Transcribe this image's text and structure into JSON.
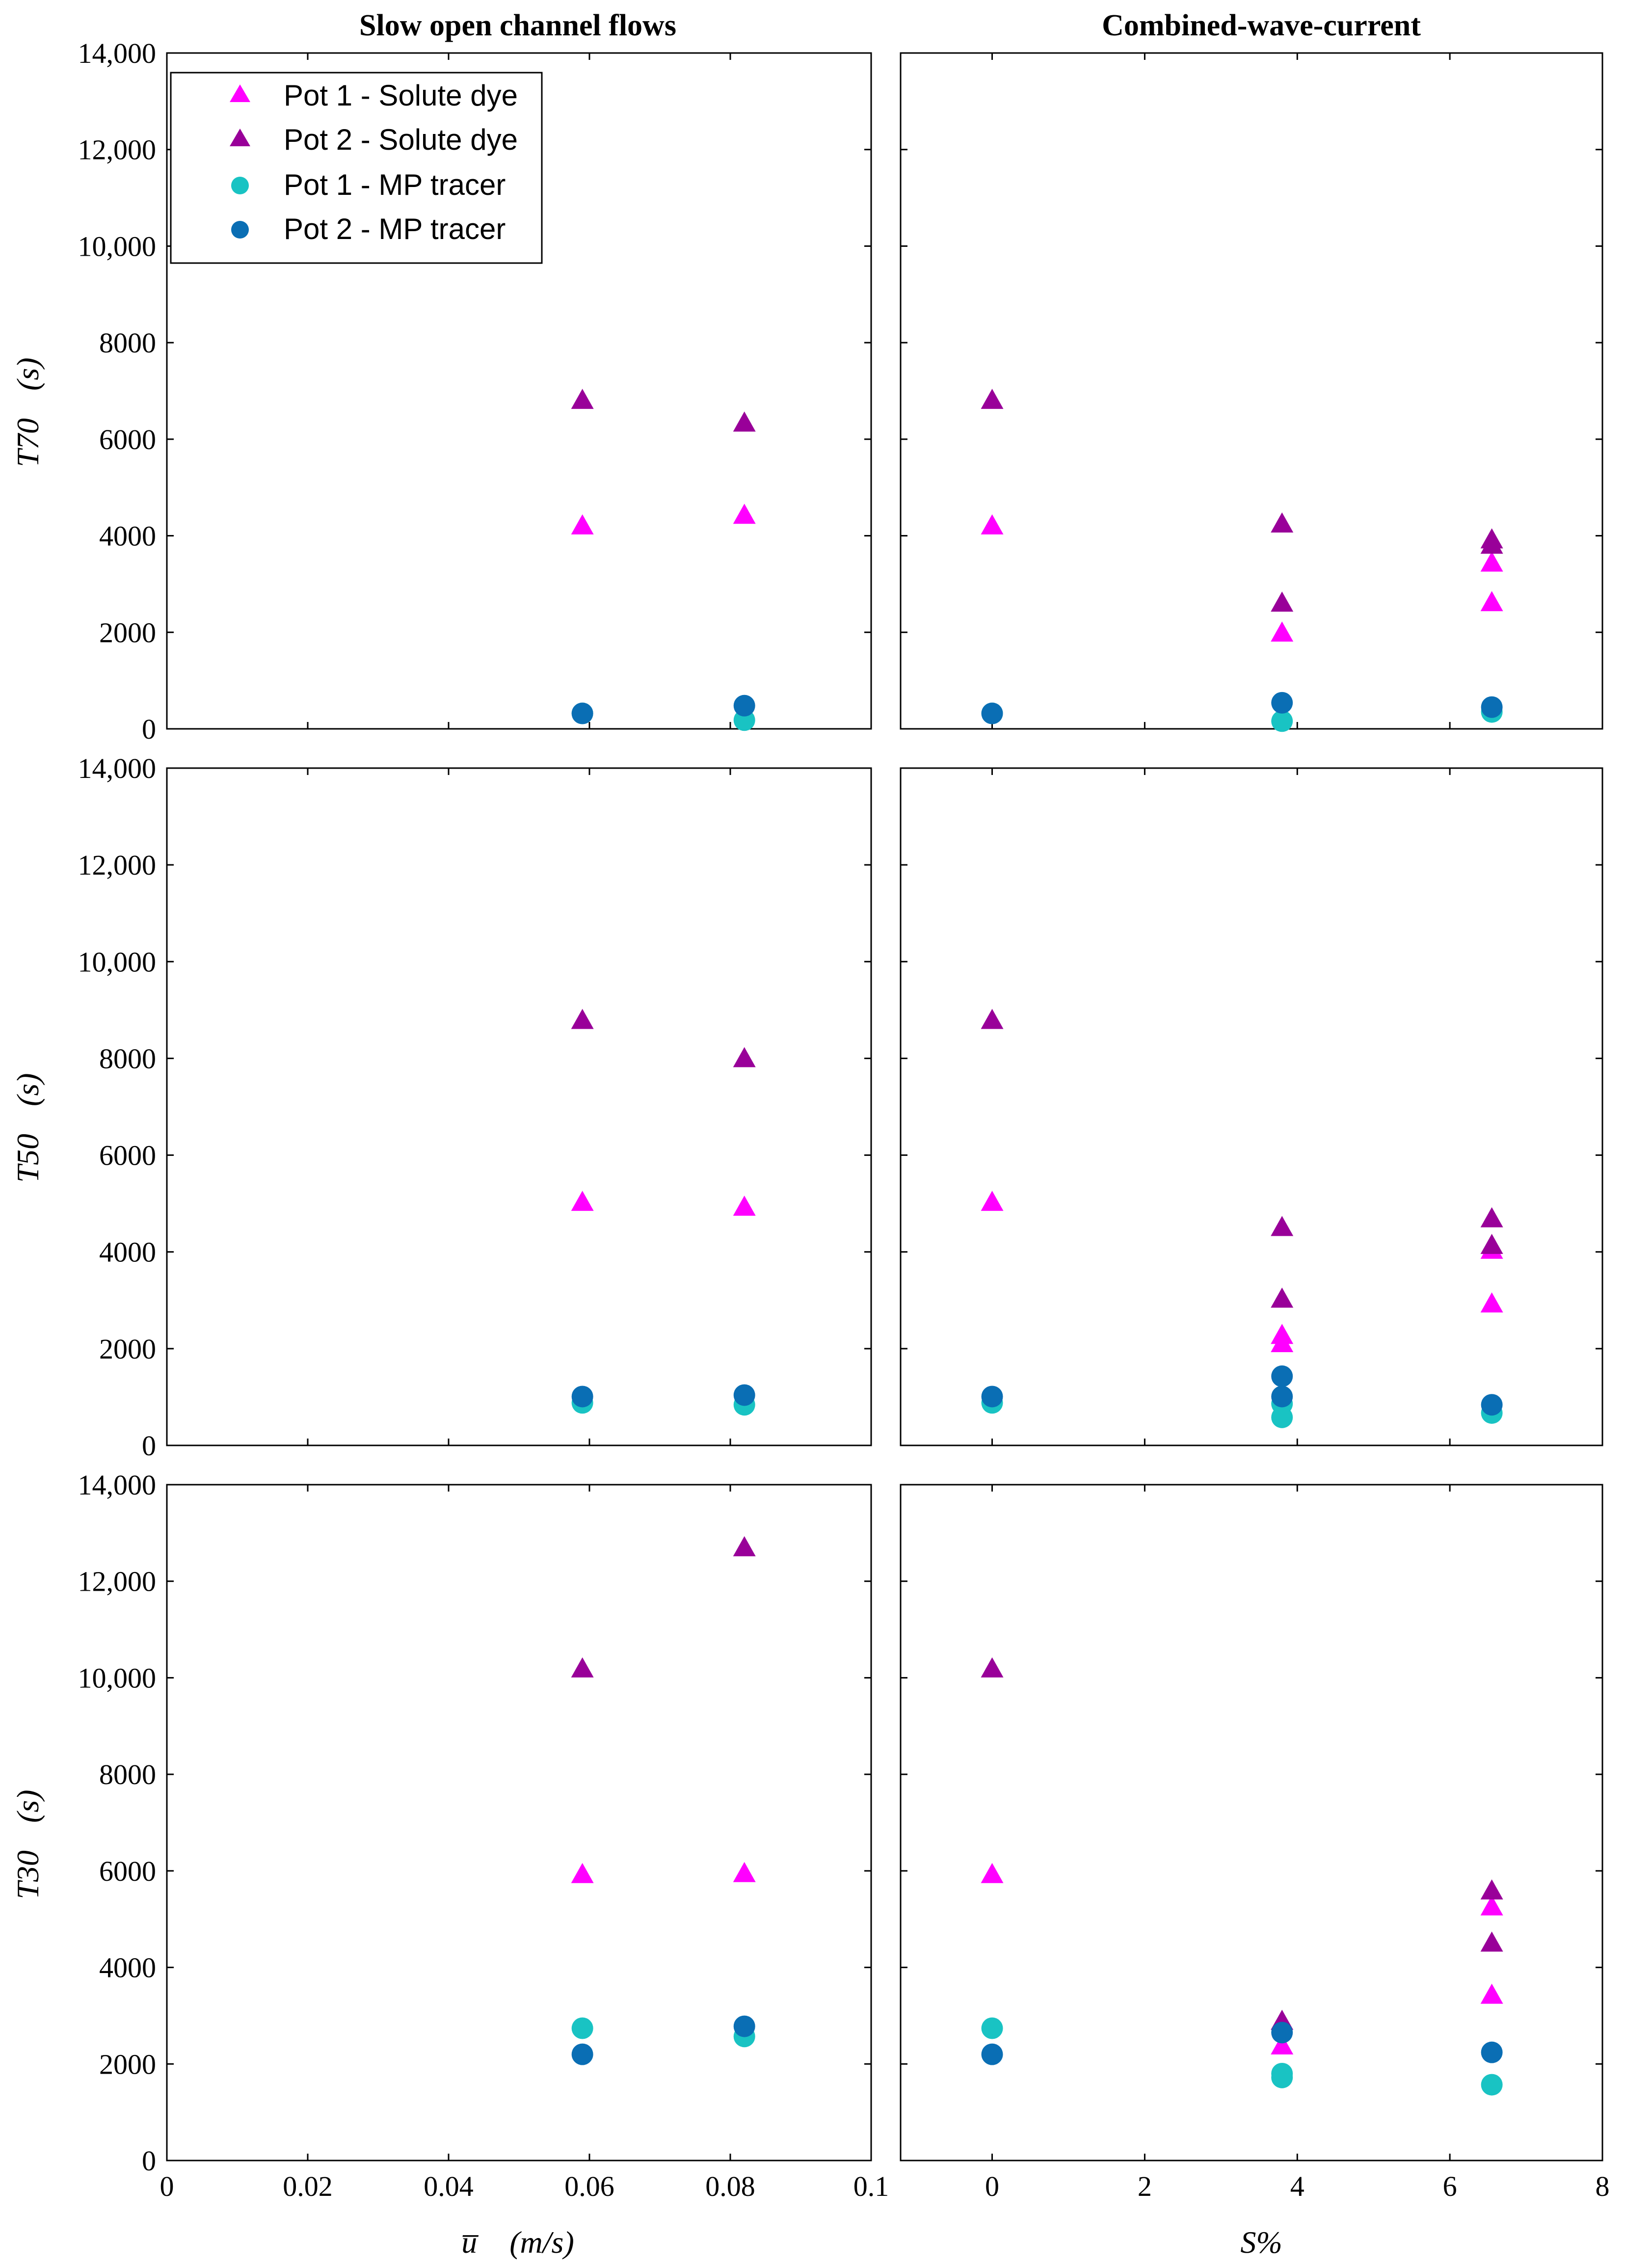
{
  "figure": {
    "column_titles": [
      "Slow open channel flows",
      "Combined-wave-current"
    ],
    "row_ylabels": [
      "T70",
      "T50",
      "T30"
    ],
    "ylabel_unit": "(s)",
    "xlabel_left_var": "u̅",
    "xlabel_left_unit": "(m/s)",
    "xlabel_right": "S%"
  },
  "colors": {
    "pot1_dye": "#ff00ff",
    "pot2_dye": "#990099",
    "pot1_mp": "#19c3c3",
    "pot2_mp": "#0a6eb4"
  },
  "legend": [
    {
      "label": "Pot 1 - Solute dye",
      "marker": "triangle",
      "color_key": "pot1_dye"
    },
    {
      "label": "Pot 2 - Solute dye",
      "marker": "triangle",
      "color_key": "pot2_dye"
    },
    {
      "label": "Pot 1 - MP tracer",
      "marker": "circle",
      "color_key": "pot1_mp"
    },
    {
      "label": "Pot 2 - MP tracer",
      "marker": "circle",
      "color_key": "pot2_mp"
    }
  ],
  "chart_data": [
    {
      "type": "scatter",
      "id": "T70-open-channel",
      "row": 0,
      "col": 0,
      "title": "Slow open channel flows",
      "ylabel": "T70 (s)",
      "xlabel": "",
      "xlim": [
        0,
        0.1
      ],
      "ylim": [
        0,
        14000
      ],
      "xticks": [],
      "xtick_labels": [],
      "yticks": [
        0,
        2000,
        4000,
        6000,
        8000,
        10000,
        12000,
        14000
      ],
      "ytick_labels": [
        "0",
        "2000",
        "4000",
        "6000",
        "8000",
        "10,000",
        "12,000",
        "14,000"
      ],
      "series": [
        {
          "name": "Pot 1 - Solute dye",
          "color_key": "pot1_dye",
          "marker": "triangle",
          "x": [
            0.059,
            0.082
          ],
          "y": [
            4200,
            4420
          ]
        },
        {
          "name": "Pot 2 - Solute dye",
          "color_key": "pot2_dye",
          "marker": "triangle",
          "x": [
            0.059,
            0.082
          ],
          "y": [
            6800,
            6330
          ]
        },
        {
          "name": "Pot 1 - MP tracer",
          "color_key": "pot1_mp",
          "marker": "circle",
          "x": [
            0.059,
            0.082
          ],
          "y": [
            320,
            180
          ]
        },
        {
          "name": "Pot 2 - MP tracer",
          "color_key": "pot2_mp",
          "marker": "circle",
          "x": [
            0.059,
            0.082
          ],
          "y": [
            320,
            480
          ]
        }
      ]
    },
    {
      "type": "scatter",
      "id": "T70-wave-current",
      "row": 0,
      "col": 1,
      "title": "Combined-wave-current",
      "ylabel": "",
      "xlabel": "",
      "xlim": [
        -1.2,
        8
      ],
      "ylim": [
        0,
        14000
      ],
      "xticks": [],
      "xtick_labels": [],
      "yticks": [],
      "ytick_labels": [],
      "series": [
        {
          "name": "Pot 1 - Solute dye",
          "color_key": "pot1_dye",
          "marker": "triangle",
          "x": [
            0,
            3.8,
            6.55,
            6.55
          ],
          "y": [
            4200,
            1980,
            3430,
            2610
          ]
        },
        {
          "name": "Pot 2 - Solute dye",
          "color_key": "pot2_dye",
          "marker": "triangle",
          "x": [
            0,
            3.8,
            3.8,
            6.55,
            6.55
          ],
          "y": [
            6800,
            4240,
            2600,
            3910,
            3800
          ]
        },
        {
          "name": "Pot 1 - MP tracer",
          "color_key": "pot1_mp",
          "marker": "circle",
          "x": [
            0,
            3.8,
            6.55
          ],
          "y": [
            320,
            160,
            350
          ]
        },
        {
          "name": "Pot 2 - MP tracer",
          "color_key": "pot2_mp",
          "marker": "circle",
          "x": [
            0,
            3.8,
            6.55
          ],
          "y": [
            320,
            540,
            450
          ]
        }
      ]
    },
    {
      "type": "scatter",
      "id": "T50-open-channel",
      "row": 1,
      "col": 0,
      "title": "",
      "ylabel": "T50 (s)",
      "xlabel": "",
      "xlim": [
        0,
        0.1
      ],
      "ylim": [
        0,
        14000
      ],
      "xticks": [],
      "xtick_labels": [],
      "yticks": [
        0,
        2000,
        4000,
        6000,
        8000,
        10000,
        12000,
        14000
      ],
      "ytick_labels": [
        "0",
        "2000",
        "4000",
        "6000",
        "8000",
        "10,000",
        "12,000",
        "14,000"
      ],
      "series": [
        {
          "name": "Pot 1 - Solute dye",
          "color_key": "pot1_dye",
          "marker": "triangle",
          "x": [
            0.059,
            0.082
          ],
          "y": [
            5020,
            4920
          ]
        },
        {
          "name": "Pot 2 - Solute dye",
          "color_key": "pot2_dye",
          "marker": "triangle",
          "x": [
            0.059,
            0.082
          ],
          "y": [
            8780,
            7990
          ]
        },
        {
          "name": "Pot 1 - MP tracer",
          "color_key": "pot1_mp",
          "marker": "circle",
          "x": [
            0.059,
            0.082
          ],
          "y": [
            880,
            840
          ]
        },
        {
          "name": "Pot 2 - MP tracer",
          "color_key": "pot2_mp",
          "marker": "circle",
          "x": [
            0.059,
            0.082
          ],
          "y": [
            1010,
            1040
          ]
        }
      ]
    },
    {
      "type": "scatter",
      "id": "T50-wave-current",
      "row": 1,
      "col": 1,
      "title": "",
      "ylabel": "",
      "xlabel": "",
      "xlim": [
        -1.2,
        8
      ],
      "ylim": [
        0,
        14000
      ],
      "xticks": [],
      "xtick_labels": [],
      "yticks": [],
      "ytick_labels": [],
      "series": [
        {
          "name": "Pot 1 - Solute dye",
          "color_key": "pot1_dye",
          "marker": "triangle",
          "x": [
            0,
            3.8,
            3.8,
            6.55,
            6.55
          ],
          "y": [
            5020,
            2270,
            2100,
            4030,
            2920
          ]
        },
        {
          "name": "Pot 2 - Solute dye",
          "color_key": "pot2_dye",
          "marker": "triangle",
          "x": [
            0,
            3.8,
            3.8,
            6.55,
            6.55
          ],
          "y": [
            8780,
            4500,
            3020,
            4680,
            4130
          ]
        },
        {
          "name": "Pot 1 - MP tracer",
          "color_key": "pot1_mp",
          "marker": "circle",
          "x": [
            0,
            3.8,
            3.8,
            6.55
          ],
          "y": [
            880,
            860,
            580,
            670
          ]
        },
        {
          "name": "Pot 2 - MP tracer",
          "color_key": "pot2_mp",
          "marker": "circle",
          "x": [
            0,
            3.8,
            3.8,
            6.55
          ],
          "y": [
            1010,
            1430,
            1010,
            840
          ]
        }
      ]
    },
    {
      "type": "scatter",
      "id": "T30-open-channel",
      "row": 2,
      "col": 0,
      "title": "",
      "ylabel": "T30 (s)",
      "xlabel": "u̅ (m/s)",
      "xlim": [
        0,
        0.1
      ],
      "ylim": [
        0,
        14000
      ],
      "xticks": [
        0,
        0.02,
        0.04,
        0.06,
        0.08,
        0.1
      ],
      "xtick_labels": [
        "0",
        "0.02",
        "0.04",
        "0.06",
        "0.08",
        "0.1"
      ],
      "yticks": [
        0,
        2000,
        4000,
        6000,
        8000,
        10000,
        12000,
        14000
      ],
      "ytick_labels": [
        "0",
        "2000",
        "4000",
        "6000",
        "8000",
        "10,000",
        "12,000",
        "14,000"
      ],
      "series": [
        {
          "name": "Pot 1 - Solute dye",
          "color_key": "pot1_dye",
          "marker": "triangle",
          "x": [
            0.059,
            0.082
          ],
          "y": [
            5920,
            5940
          ]
        },
        {
          "name": "Pot 2 - Solute dye",
          "color_key": "pot2_dye",
          "marker": "triangle",
          "x": [
            0.059,
            0.082
          ],
          "y": [
            10180,
            12690
          ]
        },
        {
          "name": "Pot 1 - MP tracer",
          "color_key": "pot1_mp",
          "marker": "circle",
          "x": [
            0.059,
            0.082
          ],
          "y": [
            2740,
            2570
          ]
        },
        {
          "name": "Pot 2 - MP tracer",
          "color_key": "pot2_mp",
          "marker": "circle",
          "x": [
            0.059,
            0.082
          ],
          "y": [
            2200,
            2780
          ]
        }
      ]
    },
    {
      "type": "scatter",
      "id": "T30-wave-current",
      "row": 2,
      "col": 1,
      "title": "",
      "ylabel": "",
      "xlabel": "S%",
      "xlim": [
        -1.2,
        8
      ],
      "ylim": [
        0,
        14000
      ],
      "xticks": [
        0,
        2,
        4,
        6,
        8
      ],
      "xtick_labels": [
        "0",
        "2",
        "4",
        "6",
        "8"
      ],
      "yticks": [],
      "ytick_labels": [],
      "series": [
        {
          "name": "Pot 1 - Solute dye",
          "color_key": "pot1_dye",
          "marker": "triangle",
          "x": [
            0,
            3.8,
            6.55,
            6.55
          ],
          "y": [
            5920,
            2370,
            5250,
            3420
          ]
        },
        {
          "name": "Pot 2 - Solute dye",
          "color_key": "pot2_dye",
          "marker": "triangle",
          "x": [
            0,
            3.8,
            6.55,
            6.55
          ],
          "y": [
            10180,
            2880,
            5580,
            4500
          ]
        },
        {
          "name": "Pot 1 - MP tracer",
          "color_key": "pot1_mp",
          "marker": "circle",
          "x": [
            0,
            3.8,
            3.8,
            6.55
          ],
          "y": [
            2740,
            1800,
            1720,
            1570
          ]
        },
        {
          "name": "Pot 2 - MP tracer",
          "color_key": "pot2_mp",
          "marker": "circle",
          "x": [
            0,
            3.8,
            6.55
          ],
          "y": [
            2200,
            2650,
            2240
          ]
        }
      ]
    }
  ]
}
